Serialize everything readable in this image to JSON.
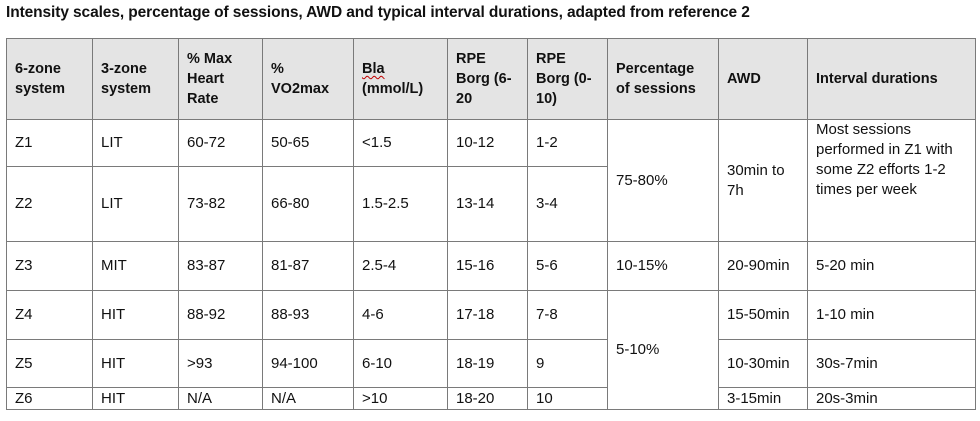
{
  "caption": "Intensity scales, percentage of sessions, AWD and typical interval durations, adapted from reference 2",
  "headers": {
    "zone6": "6-zone system",
    "zone3": "3-zone system",
    "max_hr": "% Max Heart Rate",
    "vo2max": "% VO2max",
    "bla": "Bla",
    "bla_unit": "(mmol/L)",
    "rpe620": "RPE Borg (6-20",
    "rpe010": "RPE Borg (0-10)",
    "pct_sessions": "Percentage of sessions",
    "awd": "AWD",
    "interval": "Interval durations"
  },
  "rows": [
    {
      "zone6": "Z1",
      "zone3": "LIT",
      "max_hr": "60-72",
      "vo2max": "50-65",
      "bla": "<1.5",
      "rpe620": "10-12",
      "rpe010": "1-2"
    },
    {
      "zone6": "Z2",
      "zone3": "LIT",
      "max_hr": "73-82",
      "vo2max": "66-80",
      "bla": "1.5-2.5",
      "rpe620": "13-14",
      "rpe010": "3-4"
    },
    {
      "zone6": "Z3",
      "zone3": "MIT",
      "max_hr": "83-87",
      "vo2max": "81-87",
      "bla": "2.5-4",
      "rpe620": "15-16",
      "rpe010": "5-6"
    },
    {
      "zone6": "Z4",
      "zone3": "HIT",
      "max_hr": "88-92",
      "vo2max": "88-93",
      "bla": "4-6",
      "rpe620": "17-18",
      "rpe010": "7-8"
    },
    {
      "zone6": "Z5",
      "zone3": "HIT",
      "max_hr": ">93",
      "vo2max": "94-100",
      "bla": "6-10",
      "rpe620": "18-19",
      "rpe010": "9"
    },
    {
      "zone6": "Z6",
      "zone3": "HIT",
      "max_hr": "N/A",
      "vo2max": "N/A",
      "bla": ">10",
      "rpe620": "18-20",
      "rpe010": "10"
    }
  ],
  "merged": {
    "pct_lit": "75-80%",
    "pct_mit": "10-15%",
    "pct_hit": "5-10%",
    "awd_lit": "30min to 7h",
    "awd_z3": "20-90min",
    "awd_z4": "15-50min",
    "awd_z5": "10-30min",
    "awd_z6": "3-15min",
    "interval_lit": "Most sessions performed in Z1 with some Z2 efforts 1-2 times per week",
    "interval_z3": "5-20 min",
    "interval_z4": "1-10 min",
    "interval_z5": "30s-7min",
    "interval_z6": "20s-3min"
  }
}
